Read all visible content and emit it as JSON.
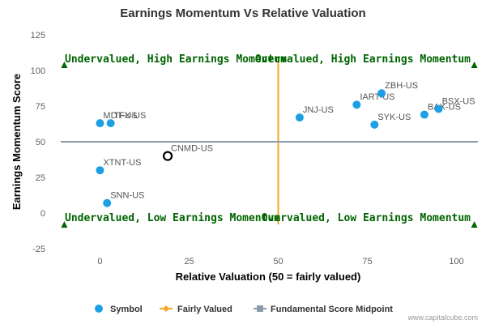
{
  "chart_data": {
    "type": "scatter",
    "title": "Earnings Momentum Vs Relative Valuation",
    "xlabel": "Relative Valuation (50 = fairly valued)",
    "ylabel": "Earnings Momentum Score",
    "xlim": [
      -11,
      106
    ],
    "ylim": [
      -25,
      125
    ],
    "x_ticks": [
      0,
      25,
      50,
      75,
      100
    ],
    "y_ticks": [
      -25,
      0,
      25,
      50,
      75,
      100,
      125
    ],
    "grid": false,
    "legend_position": "bottom",
    "series": [
      {
        "name": "Symbol",
        "color": "#1ca0e3",
        "points": [
          {
            "label": "MDT-US",
            "x": 0,
            "y": 63
          },
          {
            "label": "TFX-US",
            "x": 3,
            "y": 63
          },
          {
            "label": "XTNT-US",
            "x": 0,
            "y": 30
          },
          {
            "label": "SNN-US",
            "x": 2,
            "y": 7
          },
          {
            "label": "JNJ-US",
            "x": 56,
            "y": 67
          },
          {
            "label": "IART-US",
            "x": 72,
            "y": 76
          },
          {
            "label": "ZBH-US",
            "x": 79,
            "y": 84
          },
          {
            "label": "SYK-US",
            "x": 77,
            "y": 62
          },
          {
            "label": "BAX-US",
            "x": 91,
            "y": 69
          },
          {
            "label": "BSX-US",
            "x": 95,
            "y": 73
          }
        ]
      }
    ],
    "highlight_point": {
      "label": "CNMD-US",
      "x": 19,
      "y": 40
    },
    "reference_lines": [
      {
        "name": "Fairly Valued",
        "axis": "x",
        "value": 50,
        "color": "#f5a623"
      },
      {
        "name": "Fundamental Score Midpoint",
        "axis": "y",
        "value": 50,
        "color": "#8a9aa8"
      }
    ],
    "quadrant_labels": {
      "top_left": "Undervalued, High Earnings Momentum",
      "top_right": "Overvalued, High Earnings Momentum",
      "bottom_left": "Undervalued, Low Earnings Momentum",
      "bottom_right": "Overvalued, Low Earnings Momentum"
    },
    "quadrant_marker_color": "#006400",
    "credit": "www.capitalcube.com"
  }
}
